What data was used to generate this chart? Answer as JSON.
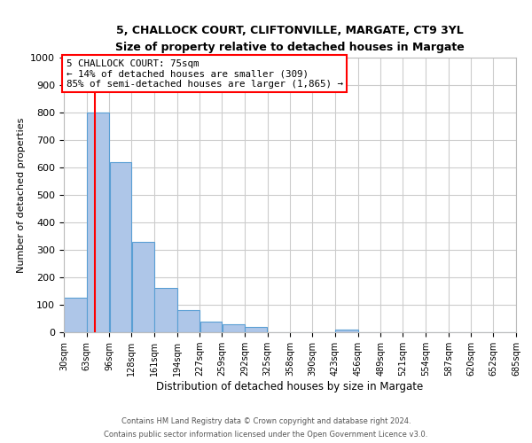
{
  "title1": "5, CHALLOCK COURT, CLIFTONVILLE, MARGATE, CT9 3YL",
  "title2": "Size of property relative to detached houses in Margate",
  "xlabel": "Distribution of detached houses by size in Margate",
  "ylabel": "Number of detached properties",
  "bar_left_edges": [
    30,
    63,
    96,
    128,
    161,
    194,
    227,
    259,
    292,
    325,
    358,
    390,
    423,
    456,
    489,
    521,
    554,
    587,
    620,
    652
  ],
  "bar_widths": [
    33,
    33,
    32,
    33,
    33,
    33,
    32,
    33,
    33,
    33,
    32,
    33,
    33,
    33,
    32,
    33,
    33,
    33,
    32,
    33
  ],
  "bar_heights": [
    125,
    800,
    620,
    330,
    160,
    80,
    40,
    30,
    20,
    0,
    0,
    0,
    10,
    0,
    0,
    0,
    0,
    0,
    0,
    0
  ],
  "x_tick_labels": [
    "30sqm",
    "63sqm",
    "96sqm",
    "128sqm",
    "161sqm",
    "194sqm",
    "227sqm",
    "259sqm",
    "292sqm",
    "325sqm",
    "358sqm",
    "390sqm",
    "423sqm",
    "456sqm",
    "489sqm",
    "521sqm",
    "554sqm",
    "587sqm",
    "620sqm",
    "652sqm",
    "685sqm"
  ],
  "x_tick_positions": [
    30,
    63,
    96,
    128,
    161,
    194,
    227,
    259,
    292,
    325,
    358,
    390,
    423,
    456,
    489,
    521,
    554,
    587,
    620,
    652,
    685
  ],
  "ylim": [
    0,
    1000
  ],
  "yticks": [
    0,
    100,
    200,
    300,
    400,
    500,
    600,
    700,
    800,
    900,
    1000
  ],
  "bar_color": "#aec6e8",
  "bar_edge_color": "#5a9fd4",
  "grid_color": "#cccccc",
  "red_line_x": 75,
  "annotation_line1": "5 CHALLOCK COURT: 75sqm",
  "annotation_line2": "← 14% of detached houses are smaller (309)",
  "annotation_line3": "85% of semi-detached houses are larger (1,865) →",
  "footer1": "Contains HM Land Registry data © Crown copyright and database right 2024.",
  "footer2": "Contains public sector information licensed under the Open Government Licence v3.0."
}
